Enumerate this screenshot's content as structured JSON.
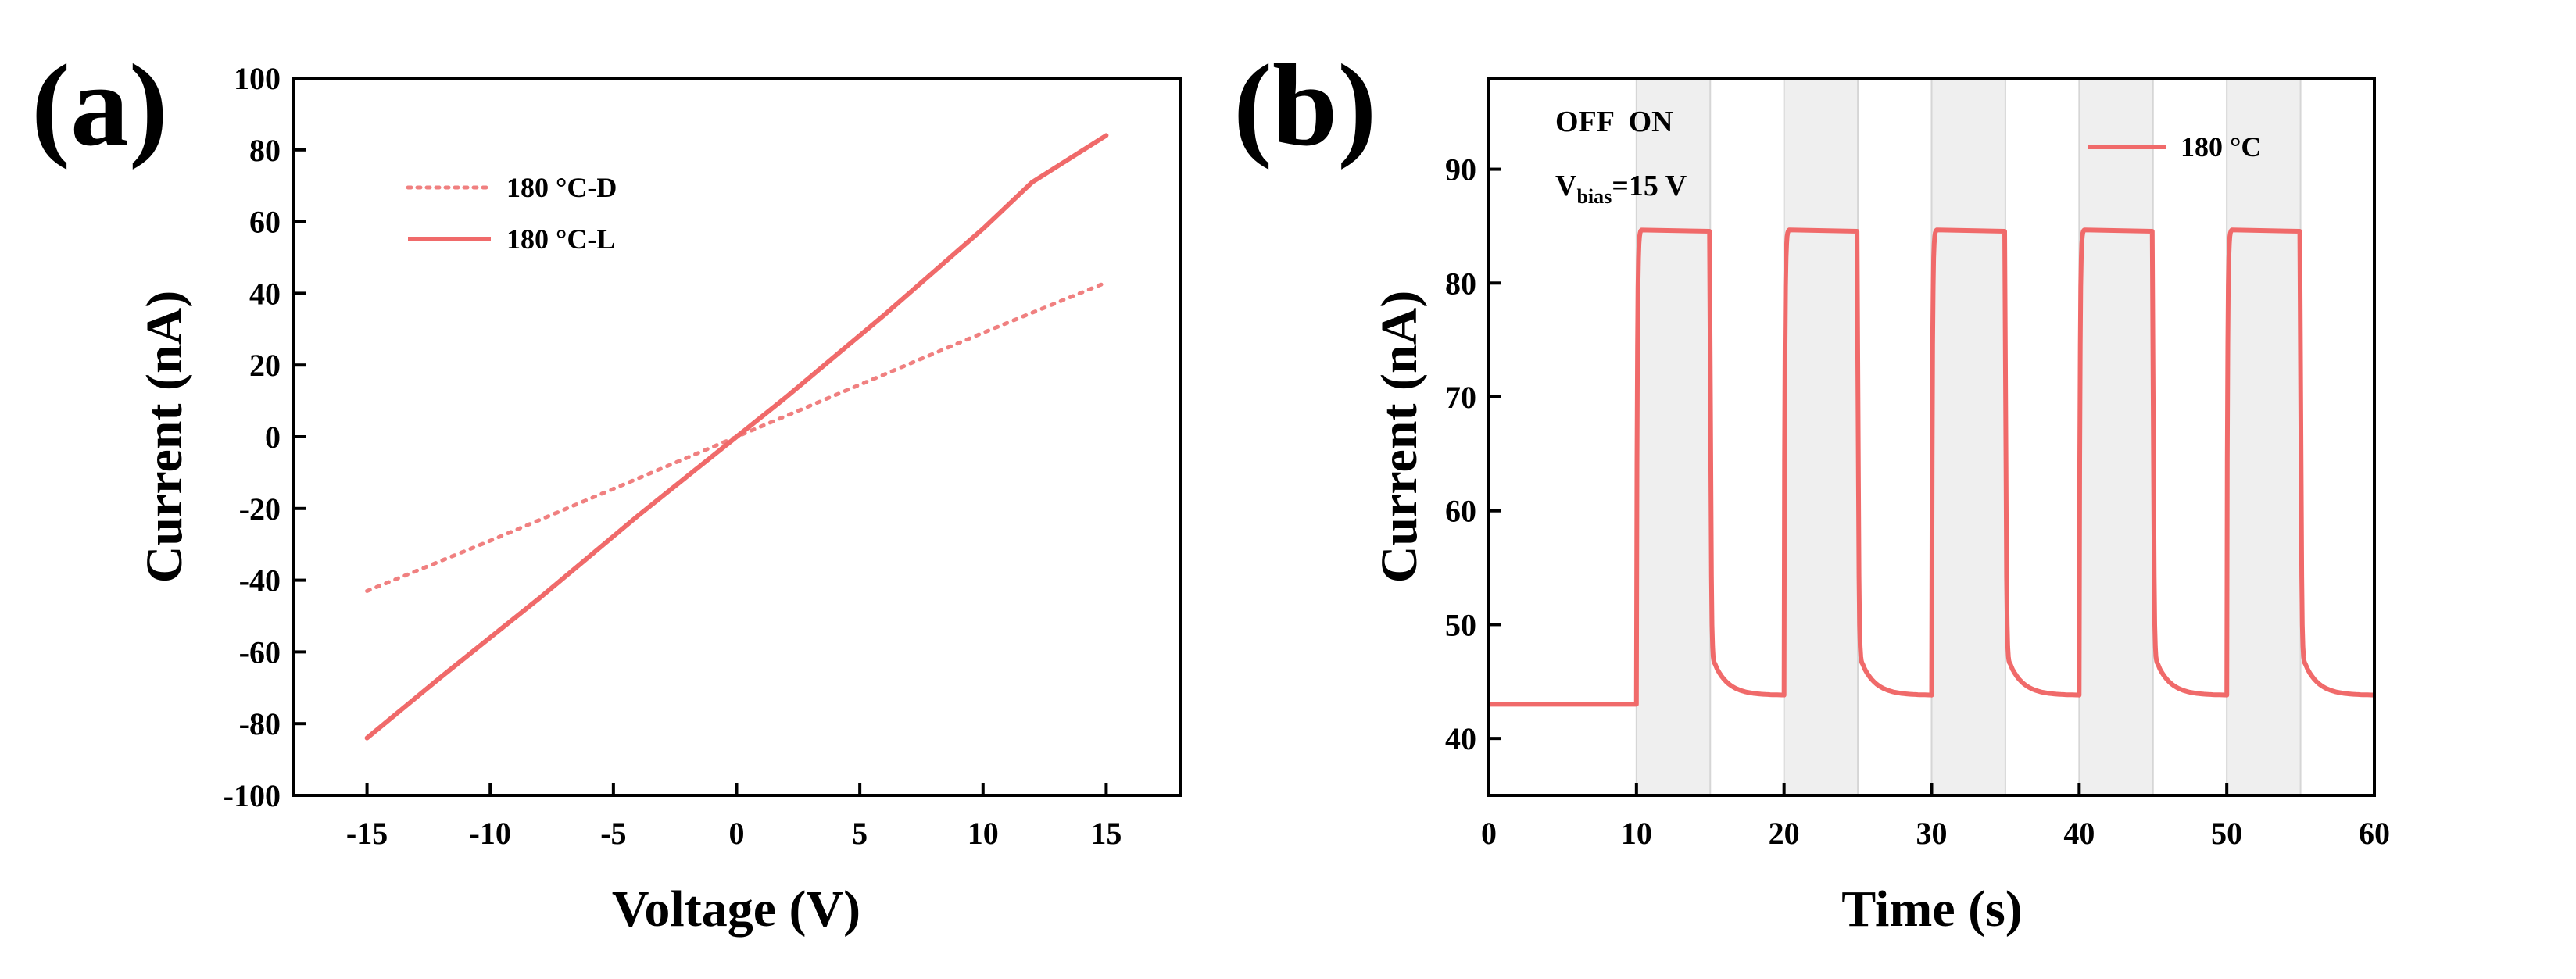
{
  "chart_data": [
    {
      "panel": "(a)",
      "type": "line",
      "xlabel": "Voltage (V)",
      "ylabel": "Current (nA)",
      "xlim": [
        -18,
        18
      ],
      "ylim": [
        -100,
        100
      ],
      "xticks": [
        -15,
        -10,
        -5,
        0,
        5,
        10,
        15
      ],
      "yticks": [
        -100,
        -80,
        -60,
        -40,
        -20,
        0,
        20,
        40,
        60,
        80,
        100
      ],
      "legend_position": "top-left",
      "series": [
        {
          "name": "180 °C-D",
          "style": "dotted",
          "color": "#f08080",
          "x": [
            -15,
            -10,
            -5,
            0,
            5,
            10,
            15
          ],
          "y": [
            -43,
            -29,
            -14.5,
            0,
            14.5,
            29,
            43
          ]
        },
        {
          "name": "180 °C-L",
          "style": "solid",
          "color": "#f06a6a",
          "x": [
            -15,
            -12,
            -10,
            -8,
            -6,
            -4,
            -2,
            0,
            2,
            4,
            6,
            8,
            10,
            12,
            15
          ],
          "y": [
            -84,
            -67,
            -56,
            -45,
            -33.5,
            -22,
            -11,
            0,
            11,
            22.5,
            34,
            46,
            58,
            71,
            84
          ]
        }
      ]
    },
    {
      "panel": "(b)",
      "type": "line",
      "xlabel": "Time (s)",
      "ylabel": "Current (nA)",
      "xlim": [
        0,
        60
      ],
      "ylim": [
        35,
        98
      ],
      "xticks": [
        0,
        10,
        20,
        30,
        40,
        50,
        60
      ],
      "yticks": [
        40,
        50,
        60,
        70,
        80,
        90
      ],
      "legend_position": "top-right",
      "shaded_on_intervals": [
        [
          10,
          15
        ],
        [
          20,
          25
        ],
        [
          30,
          35
        ],
        [
          40,
          45
        ],
        [
          50,
          55
        ]
      ],
      "boundary_lines": [
        10,
        15,
        20,
        25,
        30,
        35,
        40,
        45,
        50,
        55
      ],
      "annotations": {
        "state_label": "OFF  ON",
        "bias_prefix": "V",
        "bias_subscript": "bias",
        "bias_value": "=15 V"
      },
      "series": [
        {
          "name": "180 °C",
          "style": "solid",
          "color": "#f06a6a",
          "baseline_off": 43.0,
          "on_level": 84.7,
          "off_level_after_decay": 43.8,
          "off_level_decay_start": 46.5,
          "on_start_times": [
            10,
            20,
            30,
            40,
            50
          ],
          "on_end_times": [
            15,
            25,
            35,
            45,
            55
          ]
        }
      ]
    }
  ]
}
